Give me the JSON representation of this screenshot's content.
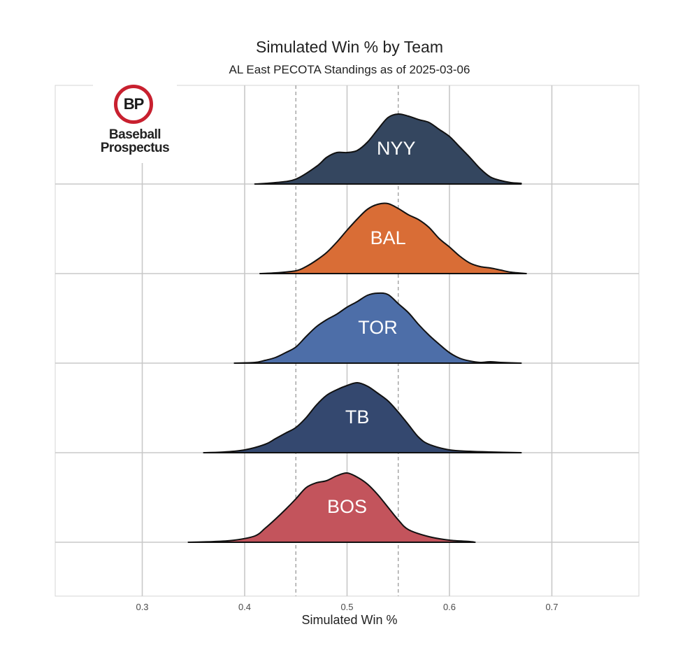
{
  "chart_data": {
    "type": "ridgeline",
    "title": "Simulated Win % by Team",
    "subtitle": "AL East PECOTA Standings as of 2025-03-06",
    "xlabel": "Simulated Win %",
    "xlim": [
      0.215,
      0.785
    ],
    "x_ticks": [
      "0.3",
      "0.4",
      "0.5",
      "0.6",
      "0.7"
    ],
    "reference_lines": [
      0.45,
      0.55
    ],
    "grid": true,
    "series": [
      {
        "name": "NYY",
        "color": "#34465f",
        "points": [
          [
            0.41,
            0.0
          ],
          [
            0.43,
            0.02
          ],
          [
            0.45,
            0.07
          ],
          [
            0.47,
            0.25
          ],
          [
            0.48,
            0.38
          ],
          [
            0.49,
            0.45
          ],
          [
            0.5,
            0.45
          ],
          [
            0.51,
            0.48
          ],
          [
            0.52,
            0.6
          ],
          [
            0.53,
            0.78
          ],
          [
            0.54,
            0.95
          ],
          [
            0.55,
            1.0
          ],
          [
            0.56,
            0.97
          ],
          [
            0.57,
            0.92
          ],
          [
            0.58,
            0.88
          ],
          [
            0.59,
            0.78
          ],
          [
            0.6,
            0.68
          ],
          [
            0.61,
            0.53
          ],
          [
            0.62,
            0.38
          ],
          [
            0.63,
            0.22
          ],
          [
            0.64,
            0.1
          ],
          [
            0.65,
            0.05
          ],
          [
            0.66,
            0.02
          ],
          [
            0.67,
            0.01
          ]
        ]
      },
      {
        "name": "BAL",
        "color": "#d96d36",
        "points": [
          [
            0.415,
            0.0
          ],
          [
            0.43,
            0.01
          ],
          [
            0.45,
            0.04
          ],
          [
            0.46,
            0.1
          ],
          [
            0.47,
            0.19
          ],
          [
            0.48,
            0.3
          ],
          [
            0.49,
            0.45
          ],
          [
            0.5,
            0.62
          ],
          [
            0.51,
            0.78
          ],
          [
            0.52,
            0.92
          ],
          [
            0.53,
            0.99
          ],
          [
            0.54,
            1.0
          ],
          [
            0.55,
            0.93
          ],
          [
            0.56,
            0.84
          ],
          [
            0.57,
            0.77
          ],
          [
            0.58,
            0.66
          ],
          [
            0.59,
            0.5
          ],
          [
            0.6,
            0.38
          ],
          [
            0.61,
            0.25
          ],
          [
            0.62,
            0.15
          ],
          [
            0.63,
            0.1
          ],
          [
            0.64,
            0.08
          ],
          [
            0.65,
            0.05
          ],
          [
            0.66,
            0.02
          ],
          [
            0.675,
            0.0
          ]
        ]
      },
      {
        "name": "TOR",
        "color": "#4d6ea8",
        "points": [
          [
            0.39,
            0.0
          ],
          [
            0.41,
            0.01
          ],
          [
            0.42,
            0.04
          ],
          [
            0.43,
            0.08
          ],
          [
            0.44,
            0.15
          ],
          [
            0.45,
            0.23
          ],
          [
            0.46,
            0.38
          ],
          [
            0.47,
            0.52
          ],
          [
            0.48,
            0.62
          ],
          [
            0.49,
            0.7
          ],
          [
            0.5,
            0.8
          ],
          [
            0.51,
            0.88
          ],
          [
            0.52,
            0.97
          ],
          [
            0.53,
            1.0
          ],
          [
            0.54,
            0.98
          ],
          [
            0.55,
            0.85
          ],
          [
            0.56,
            0.72
          ],
          [
            0.57,
            0.55
          ],
          [
            0.58,
            0.4
          ],
          [
            0.59,
            0.27
          ],
          [
            0.6,
            0.15
          ],
          [
            0.61,
            0.07
          ],
          [
            0.62,
            0.03
          ],
          [
            0.63,
            0.01
          ],
          [
            0.64,
            0.02
          ],
          [
            0.65,
            0.01
          ],
          [
            0.67,
            0.0
          ]
        ]
      },
      {
        "name": "TB",
        "color": "#34486f",
        "points": [
          [
            0.36,
            0.0
          ],
          [
            0.38,
            0.01
          ],
          [
            0.4,
            0.04
          ],
          [
            0.42,
            0.12
          ],
          [
            0.43,
            0.2
          ],
          [
            0.44,
            0.28
          ],
          [
            0.45,
            0.36
          ],
          [
            0.46,
            0.5
          ],
          [
            0.47,
            0.68
          ],
          [
            0.48,
            0.82
          ],
          [
            0.49,
            0.9
          ],
          [
            0.5,
            0.96
          ],
          [
            0.51,
            1.0
          ],
          [
            0.52,
            0.95
          ],
          [
            0.53,
            0.85
          ],
          [
            0.54,
            0.74
          ],
          [
            0.55,
            0.58
          ],
          [
            0.56,
            0.4
          ],
          [
            0.57,
            0.22
          ],
          [
            0.58,
            0.12
          ],
          [
            0.6,
            0.04
          ],
          [
            0.62,
            0.02
          ],
          [
            0.64,
            0.01
          ],
          [
            0.67,
            0.0
          ]
        ]
      },
      {
        "name": "BOS",
        "color": "#c3545c",
        "points": [
          [
            0.345,
            0.0
          ],
          [
            0.37,
            0.01
          ],
          [
            0.39,
            0.03
          ],
          [
            0.41,
            0.09
          ],
          [
            0.42,
            0.2
          ],
          [
            0.43,
            0.33
          ],
          [
            0.44,
            0.47
          ],
          [
            0.45,
            0.62
          ],
          [
            0.46,
            0.78
          ],
          [
            0.47,
            0.85
          ],
          [
            0.48,
            0.88
          ],
          [
            0.49,
            0.95
          ],
          [
            0.5,
            0.99
          ],
          [
            0.51,
            0.93
          ],
          [
            0.52,
            0.83
          ],
          [
            0.53,
            0.68
          ],
          [
            0.54,
            0.5
          ],
          [
            0.55,
            0.32
          ],
          [
            0.56,
            0.18
          ],
          [
            0.58,
            0.08
          ],
          [
            0.6,
            0.03
          ],
          [
            0.62,
            0.01
          ],
          [
            0.625,
            0.0
          ]
        ]
      }
    ]
  },
  "logo": {
    "mark": "BP",
    "line1": "Baseball",
    "line2": "Prospectus",
    "accent": "#c8202f"
  }
}
